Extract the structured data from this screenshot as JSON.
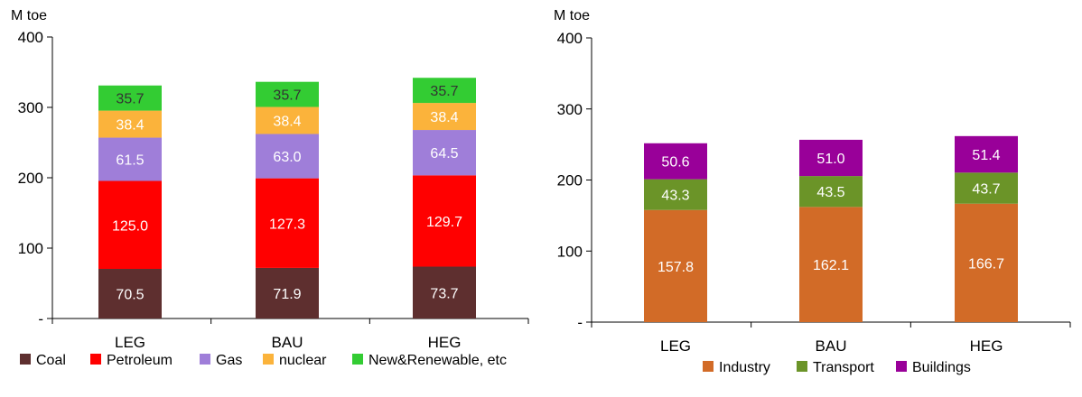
{
  "chart_data": [
    {
      "type": "bar",
      "stacked": true,
      "unit_label": "M toe",
      "title": "",
      "xlabel": "",
      "ylabel": "",
      "ylim": [
        0,
        400
      ],
      "yticks": [
        "-",
        "100",
        "200",
        "300",
        "400"
      ],
      "categories": [
        "LEG",
        "BAU",
        "HEG"
      ],
      "legend_position": "bottom",
      "grid": false,
      "series": [
        {
          "name": "Coal",
          "color": "#5e2f2f",
          "label_color": "#ffffff",
          "values": [
            70.5,
            71.9,
            73.7
          ],
          "labels": [
            "70.5",
            "71.9",
            "73.7"
          ]
        },
        {
          "name": "Petroleum",
          "color": "#ff0000",
          "label_color": "#ffffff",
          "values": [
            125.0,
            127.3,
            129.7
          ],
          "labels": [
            "125.0",
            "127.3",
            "129.7"
          ]
        },
        {
          "name": "Gas",
          "color": "#9f7ed9",
          "label_color": "#ffffff",
          "values": [
            61.5,
            63.0,
            64.5
          ],
          "labels": [
            "61.5",
            "63.0",
            "64.5"
          ]
        },
        {
          "name": "nuclear",
          "color": "#fbb33b",
          "label_color": "#ffffff",
          "values": [
            38.4,
            38.4,
            38.4
          ],
          "labels": [
            "38.4",
            "38.4",
            "38.4"
          ]
        },
        {
          "name": "New&Renewable, etc",
          "color": "#33cc33",
          "label_color": "#333333",
          "values": [
            35.7,
            35.7,
            35.7
          ],
          "labels": [
            "35.7",
            "35.7",
            "35.7"
          ]
        }
      ]
    },
    {
      "type": "bar",
      "stacked": true,
      "unit_label": "M toe",
      "title": "",
      "xlabel": "",
      "ylabel": "",
      "ylim": [
        0,
        400
      ],
      "yticks": [
        "-",
        "100",
        "200",
        "300",
        "400"
      ],
      "categories": [
        "LEG",
        "BAU",
        "HEG"
      ],
      "legend_position": "bottom",
      "grid": false,
      "series": [
        {
          "name": "Industry",
          "color": "#d26b27",
          "label_color": "#ffffff",
          "values": [
            157.8,
            162.1,
            166.7
          ],
          "labels": [
            "157.8",
            "162.1",
            "166.7"
          ]
        },
        {
          "name": "Transport",
          "color": "#6b9428",
          "label_color": "#ffffff",
          "values": [
            43.3,
            43.5,
            43.7
          ],
          "labels": [
            "43.3",
            "43.5",
            "43.7"
          ]
        },
        {
          "name": "Buildings",
          "color": "#990099",
          "label_color": "#ffffff",
          "values": [
            50.6,
            51.0,
            51.4
          ],
          "labels": [
            "50.6",
            "51.0",
            "51.4"
          ]
        }
      ]
    }
  ]
}
